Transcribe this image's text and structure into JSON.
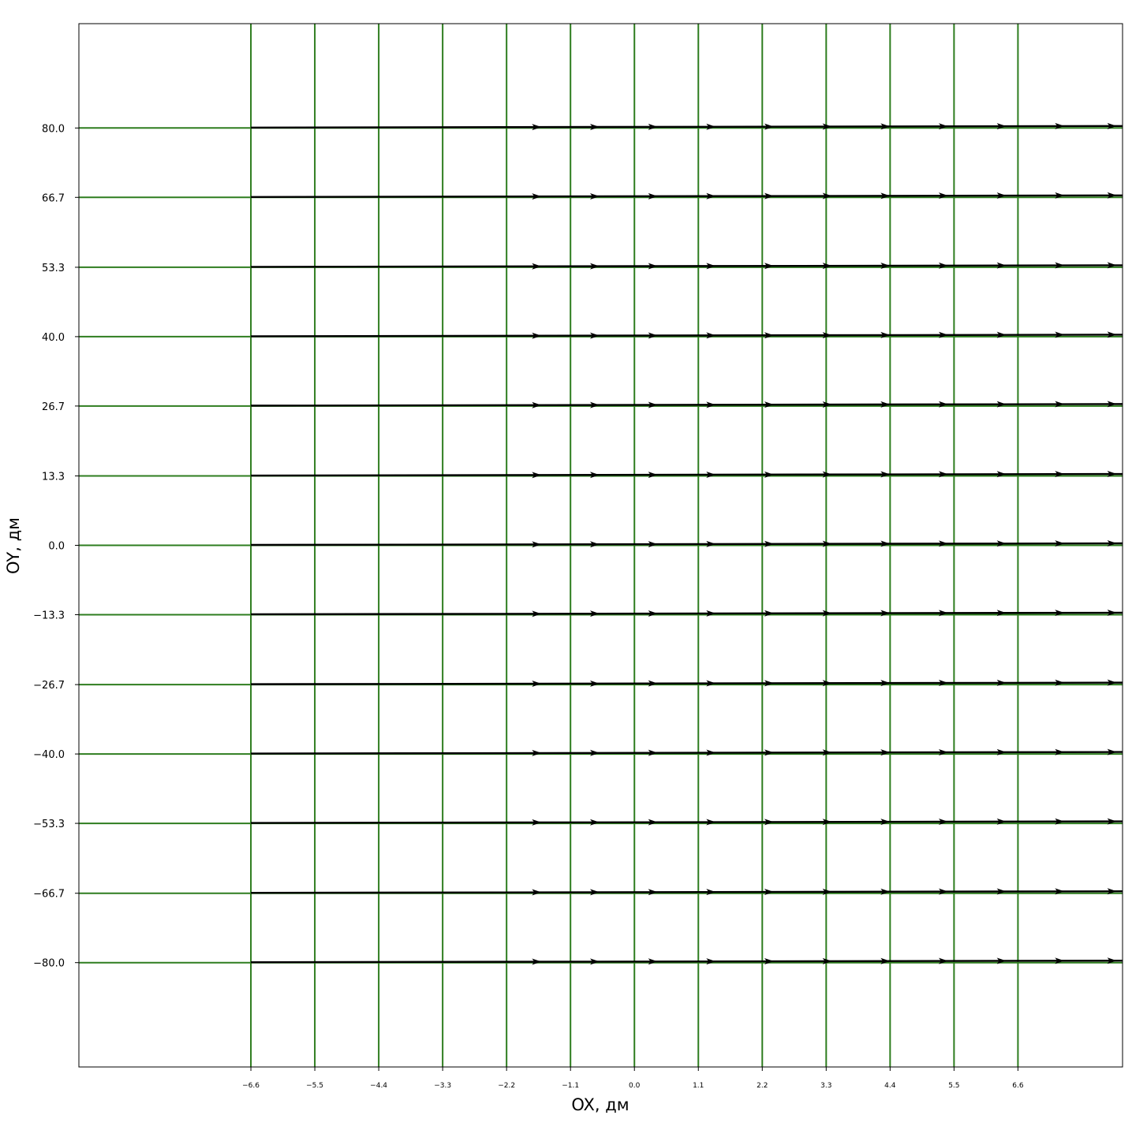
{
  "chart_data": {
    "type": "quiver",
    "xlabel": "OX, дм",
    "ylabel": "OY, дм",
    "xlim": [
      -9.56,
      8.4
    ],
    "ylim": [
      -100,
      100
    ],
    "grid_color": "#2e7d1f",
    "arrow_color": "#000000",
    "x_ticks": [
      -6.6,
      -5.5,
      -4.4,
      -3.3,
      -2.2,
      -1.1,
      0.0,
      1.1,
      2.2,
      3.3,
      4.4,
      5.5,
      6.6
    ],
    "x_tick_labels": [
      "−6.6",
      "−5.5",
      "−4.4",
      "−3.3",
      "−2.2",
      "−1.1",
      "0.0",
      "1.1",
      "2.2",
      "3.3",
      "4.4",
      "5.5",
      "6.6"
    ],
    "y_ticks": [
      80.0,
      66.7,
      53.3,
      40.0,
      26.7,
      13.3,
      0.0,
      -13.3,
      -26.7,
      -40.0,
      -53.3,
      -66.7,
      -80.0
    ],
    "y_tick_labels": [
      "80.0",
      "66.7",
      "53.3",
      "40.0",
      "26.7",
      "13.3",
      "0.0",
      "−13.3",
      "−26.7",
      "−40.0",
      "−53.3",
      "−66.7",
      "−80.0"
    ],
    "grid_x": [
      -6.6,
      -5.5,
      -4.4,
      -3.3,
      -2.2,
      -1.1,
      0.0,
      1.1,
      2.2,
      3.3,
      4.4,
      5.5,
      6.6
    ],
    "grid_y": [
      80.0,
      66.7,
      53.3,
      40.0,
      26.7,
      13.3,
      0.0,
      -13.3,
      -26.7,
      -40.0,
      -53.3,
      -66.7,
      -80.0
    ],
    "arrow_heads_x": [
      -1.6,
      -0.6,
      0.4,
      1.4,
      2.4,
      3.4,
      4.4,
      5.4,
      6.4,
      7.4,
      8.3
    ],
    "streamline_x_range": [
      -6.6,
      8.4
    ],
    "direction": "+x"
  }
}
